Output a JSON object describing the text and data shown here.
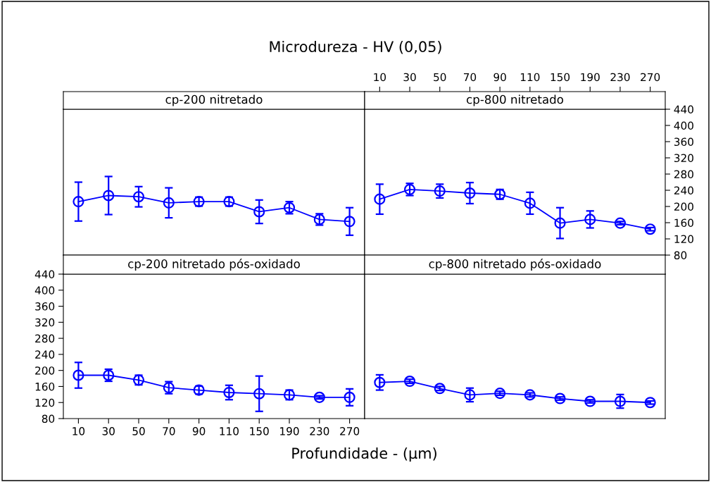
{
  "chart_data": [
    {
      "type": "line",
      "title": "cp-200 nitretado",
      "annotations": [
        "Microdureza - HV (0,05)"
      ],
      "categories": [
        "10",
        "30",
        "50",
        "70",
        "90",
        "110",
        "150",
        "190",
        "230",
        "270"
      ],
      "ylim": [
        80,
        440
      ],
      "yticks": [
        80,
        120,
        160,
        200,
        240,
        280,
        320,
        360,
        400,
        440
      ],
      "tick_labels": false,
      "marker": "circle",
      "series": [
        {
          "color": "#0000ff",
          "values": [
            212,
            227,
            224,
            209,
            212,
            212,
            187,
            197,
            168,
            163
          ],
          "errors": [
            48,
            47,
            25,
            37,
            11,
            11,
            29,
            15,
            14,
            34
          ]
        }
      ]
    },
    {
      "type": "line",
      "title": "cp-800 nitretado",
      "categories": [
        "10",
        "30",
        "50",
        "70",
        "90",
        "110",
        "150",
        "190",
        "230",
        "270"
      ],
      "ylim": [
        80,
        440
      ],
      "yticks": [
        80,
        120,
        160,
        200,
        240,
        280,
        320,
        360,
        400,
        440
      ],
      "marker": "circle",
      "series": [
        {
          "color": "#0000ff",
          "values": [
            218,
            242,
            238,
            233,
            230,
            208,
            159,
            168,
            159,
            144
          ],
          "errors": [
            37,
            15,
            17,
            26,
            12,
            27,
            38,
            21,
            4,
            4
          ]
        }
      ]
    },
    {
      "type": "line",
      "title": "cp-200 nitretado pós-oxidado",
      "xlabel": "Profundidade - (µm)",
      "categories": [
        "10",
        "30",
        "50",
        "70",
        "90",
        "110",
        "150",
        "190",
        "230",
        "270"
      ],
      "ylim": [
        80,
        440
      ],
      "yticks": [
        80,
        120,
        160,
        200,
        240,
        280,
        320,
        360,
        400,
        440
      ],
      "marker": "circle",
      "series": [
        {
          "color": "#0000ff",
          "values": [
            188,
            188,
            176,
            157,
            151,
            145,
            142,
            139,
            133,
            133
          ],
          "errors": [
            32,
            15,
            12,
            15,
            10,
            18,
            44,
            12,
            4,
            21
          ]
        }
      ]
    },
    {
      "type": "line",
      "title": "cp-800 nitretado pós-oxidado",
      "categories": [
        "10",
        "30",
        "50",
        "70",
        "90",
        "110",
        "150",
        "190",
        "230",
        "270"
      ],
      "ylim": [
        80,
        440
      ],
      "yticks": [
        80,
        120,
        160,
        200,
        240,
        280,
        320,
        360,
        400,
        440
      ],
      "tick_labels": false,
      "marker": "circle",
      "series": [
        {
          "color": "#0000ff",
          "values": [
            170,
            173,
            155,
            139,
            143,
            139,
            130,
            123,
            123,
            120
          ],
          "errors": [
            19,
            5,
            5,
            17,
            5,
            5,
            4,
            4,
            17,
            4
          ]
        }
      ]
    }
  ]
}
